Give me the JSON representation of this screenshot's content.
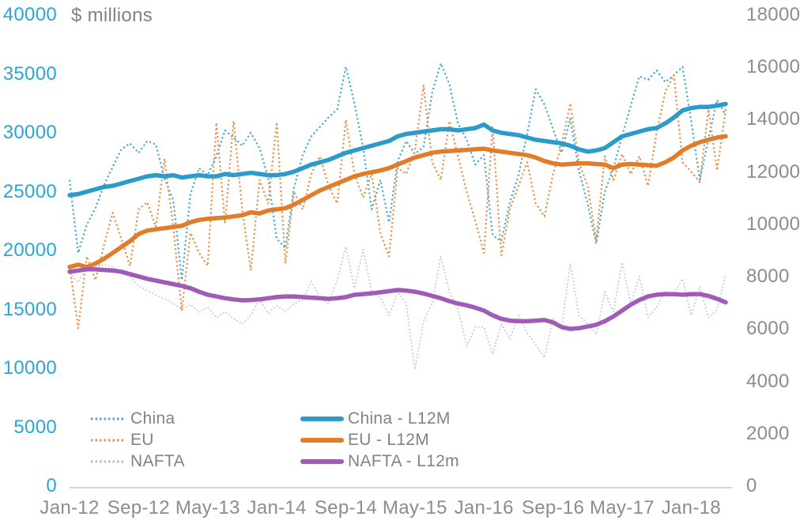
{
  "axis_title": "$ millions",
  "left_axis": {
    "color": "#2ba4d8",
    "labels": [
      "40000",
      "35000",
      "30000",
      "25000",
      "20000",
      "15000",
      "10000",
      "5000",
      "0"
    ],
    "max": 40000,
    "step": 5000
  },
  "right_axis": {
    "color": "#8a8d90",
    "labels": [
      "18000",
      "16000",
      "14000",
      "12000",
      "10000",
      "8000",
      "6000",
      "4000",
      "2000",
      "0"
    ],
    "max": 18000,
    "step": 2000
  },
  "x_axis": {
    "labels": [
      "Jan-12",
      "Sep-12",
      "May-13",
      "Jan-14",
      "Sep-14",
      "May-15",
      "Jan-16",
      "Sep-16",
      "May-17",
      "Jan-18"
    ],
    "tick_every_months": 8
  },
  "legend": {
    "col1": [
      "China",
      "EU",
      "NAFTA"
    ],
    "col2": [
      "China - L12M",
      "EU - L12M",
      "NAFTA - L12m"
    ]
  },
  "colors": {
    "china": "#2b9cc9",
    "eu": "#e07c2a",
    "nafta": "#a05cb5",
    "china_dotted": "#45a9d6",
    "eu_dotted": "#e8914a",
    "nafta_dotted": "#c9abde",
    "axis_line": "#d5d6d8",
    "text_gray": "#808285"
  },
  "chart_data": {
    "type": "line",
    "title": "$ millions",
    "x_start": "Jan-12",
    "x_end": "May-18",
    "months": 77,
    "categories": [
      "Jan-12",
      "Sep-12",
      "May-13",
      "Jan-14",
      "Sep-14",
      "May-15",
      "Jan-16",
      "Sep-16",
      "May-17",
      "Jan-18"
    ],
    "left_ylim": [
      0,
      40000
    ],
    "right_ylim": [
      0,
      18000
    ],
    "grid": false,
    "legend_position": "bottom-left",
    "series": [
      {
        "name": "China",
        "style": "dotted",
        "axis": "left",
        "values": [
          26000,
          19800,
          22200,
          23600,
          25600,
          27100,
          28600,
          29100,
          28300,
          29300,
          29000,
          26100,
          24300,
          17500,
          24800,
          27000,
          26400,
          28000,
          30200,
          29600,
          28900,
          30000,
          28700,
          26200,
          21000,
          20200,
          25300,
          28100,
          29700,
          30500,
          31300,
          32000,
          35600,
          32500,
          28800,
          23500,
          26000,
          22400,
          27600,
          29300,
          28200,
          28800,
          33400,
          35900,
          34100,
          30800,
          29400,
          27300,
          28100,
          21300,
          20800,
          24100,
          26400,
          29900,
          33700,
          32400,
          30300,
          28300,
          31200,
          26800,
          24000,
          20600,
          25000,
          27000,
          29700,
          32300,
          34800,
          34500,
          35300,
          34300,
          34900,
          35600,
          31000,
          26000,
          29500,
          32800,
          31500
        ]
      },
      {
        "name": "EU",
        "style": "dotted",
        "axis": "left",
        "values": [
          18800,
          13400,
          19500,
          17500,
          20500,
          23200,
          21000,
          18700,
          23500,
          24100,
          22000,
          27800,
          22000,
          14900,
          21500,
          19800,
          18700,
          30850,
          22300,
          31000,
          23500,
          18300,
          26000,
          24000,
          30900,
          18900,
          25000,
          23500,
          26500,
          28000,
          25500,
          24000,
          31100,
          26500,
          24500,
          26500,
          21500,
          19500,
          27000,
          26500,
          28500,
          34000,
          27500,
          26000,
          31000,
          28000,
          25000,
          22500,
          19800,
          30500,
          19600,
          23500,
          25500,
          27500,
          24000,
          22900,
          26500,
          29000,
          32500,
          27500,
          25500,
          20900,
          28000,
          26000,
          28200,
          26500,
          28000,
          25500,
          30000,
          33500,
          34900,
          27500,
          26700,
          25800,
          32000,
          26800,
          32000
        ]
      },
      {
        "name": "NAFTA",
        "style": "dotted-thin",
        "axis": "left",
        "values": [
          18100,
          17300,
          18600,
          18700,
          18800,
          18600,
          18200,
          17800,
          17000,
          16600,
          16200,
          15900,
          15500,
          15000,
          15400,
          14760,
          15200,
          14300,
          14800,
          14200,
          13760,
          14500,
          15800,
          14700,
          15300,
          14800,
          15500,
          15800,
          17370,
          16000,
          15500,
          17500,
          20330,
          16800,
          20100,
          16500,
          16000,
          14500,
          16500,
          15500,
          9900,
          14000,
          15500,
          19500,
          16500,
          15000,
          11900,
          13500,
          13500,
          11200,
          13800,
          12500,
          14500,
          13000,
          12000,
          10900,
          14200,
          13500,
          18900,
          14500,
          13800,
          12880,
          16500,
          14800,
          19000,
          15500,
          17800,
          14300,
          15200,
          16500,
          16300,
          17600,
          14500,
          16900,
          14300,
          15000,
          17900
        ]
      },
      {
        "name": "China - L12M",
        "style": "solid",
        "axis": "left",
        "values": [
          24700,
          24800,
          25000,
          25200,
          25400,
          25500,
          25700,
          25900,
          26100,
          26300,
          26400,
          26300,
          26400,
          26200,
          26300,
          26400,
          26300,
          26300,
          26500,
          26400,
          26500,
          26600,
          26500,
          26400,
          26400,
          26500,
          26700,
          27000,
          27300,
          27500,
          27700,
          28000,
          28300,
          28500,
          28700,
          28900,
          29100,
          29300,
          29700,
          29900,
          30000,
          30100,
          30200,
          30300,
          30300,
          30200,
          30300,
          30400,
          30700,
          30200,
          30000,
          29900,
          29800,
          29600,
          29400,
          29300,
          29200,
          29100,
          28900,
          28600,
          28400,
          28500,
          28700,
          29200,
          29700,
          29900,
          30100,
          30300,
          30400,
          30800,
          31300,
          31900,
          32100,
          32200,
          32200,
          32300,
          32450
        ]
      },
      {
        "name": "EU - L12M",
        "style": "solid",
        "axis": "left",
        "values": [
          18600,
          18800,
          18600,
          18900,
          19300,
          19800,
          20300,
          20800,
          21400,
          21700,
          21800,
          21900,
          22000,
          22100,
          22400,
          22600,
          22700,
          22750,
          22800,
          22900,
          23000,
          23250,
          23150,
          23400,
          23500,
          23600,
          23900,
          24300,
          24700,
          25100,
          25400,
          25700,
          26000,
          26300,
          26500,
          26650,
          26800,
          27000,
          27300,
          27600,
          27900,
          28100,
          28300,
          28400,
          28450,
          28500,
          28550,
          28600,
          28650,
          28500,
          28400,
          28300,
          28200,
          28100,
          27900,
          27600,
          27400,
          27300,
          27350,
          27400,
          27400,
          27350,
          27300,
          27000,
          27300,
          27350,
          27300,
          27250,
          27200,
          27500,
          27900,
          28500,
          28900,
          29200,
          29400,
          29600,
          29700
        ]
      },
      {
        "name": "NAFTA - L12m",
        "style": "solid",
        "axis": "left",
        "values": [
          18200,
          18300,
          18400,
          18400,
          18350,
          18300,
          18200,
          18000,
          17800,
          17600,
          17450,
          17300,
          17150,
          17000,
          16800,
          16500,
          16250,
          16100,
          15950,
          15850,
          15770,
          15800,
          15850,
          15950,
          16050,
          16100,
          16100,
          16050,
          16000,
          15950,
          15900,
          15950,
          16050,
          16240,
          16300,
          16370,
          16450,
          16550,
          16650,
          16600,
          16500,
          16350,
          16150,
          15950,
          15700,
          15500,
          15350,
          15150,
          14900,
          14500,
          14200,
          14050,
          14000,
          14000,
          14050,
          14100,
          13900,
          13500,
          13350,
          13400,
          13550,
          13700,
          14000,
          14400,
          14900,
          15400,
          15800,
          16100,
          16250,
          16300,
          16300,
          16250,
          16300,
          16300,
          16150,
          15900,
          15600
        ]
      }
    ]
  }
}
